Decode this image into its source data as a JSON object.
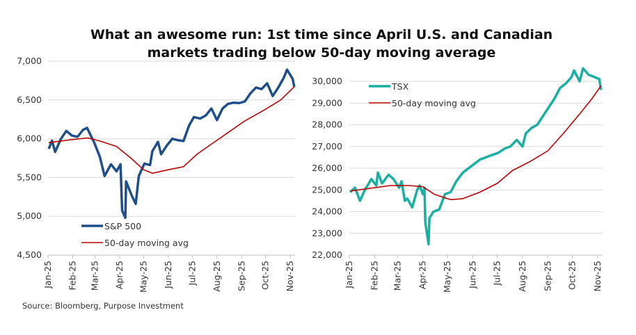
{
  "title_lines": [
    "What an awesome run: 1st time since April U.S. and Canadian",
    "markets trading below 50-day moving average"
  ],
  "source": "Source: Bloomberg, Purpose Investment",
  "chart_data": [
    {
      "type": "line",
      "year": 2025,
      "ylim": [
        4500,
        7000
      ],
      "yticks": [
        4500,
        5000,
        5500,
        6000,
        6500,
        7000
      ],
      "ytick_labels": [
        "4,500",
        "5,000",
        "5,500",
        "6,000",
        "6,500",
        "7,000"
      ],
      "xtick_labels": [
        "Jan-25",
        "Feb-25",
        "Mar-25",
        "Apr-25",
        "May-25",
        "Jun-25",
        "Jul-25",
        "Aug-25",
        "Sep-25",
        "Oct-25",
        "Nov-25"
      ],
      "grid": true,
      "legend": "bottom-left",
      "series": [
        {
          "name": "S&P 500",
          "color": "#1f4e8c",
          "width": 3.5,
          "x": [
            "2025-01-02",
            "2025-01-06",
            "2025-01-10",
            "2025-01-17",
            "2025-01-24",
            "2025-01-31",
            "2025-02-07",
            "2025-02-14",
            "2025-02-19",
            "2025-02-28",
            "2025-03-07",
            "2025-03-13",
            "2025-03-21",
            "2025-03-28",
            "2025-04-02",
            "2025-04-04",
            "2025-04-08",
            "2025-04-09",
            "2025-04-16",
            "2025-04-21",
            "2025-04-25",
            "2025-05-02",
            "2025-05-09",
            "2025-05-12",
            "2025-05-19",
            "2025-05-23",
            "2025-05-30",
            "2025-06-06",
            "2025-06-13",
            "2025-06-20",
            "2025-06-27",
            "2025-07-03",
            "2025-07-11",
            "2025-07-18",
            "2025-07-25",
            "2025-08-01",
            "2025-08-08",
            "2025-08-15",
            "2025-08-22",
            "2025-08-29",
            "2025-09-05",
            "2025-09-12",
            "2025-09-19",
            "2025-09-26",
            "2025-10-03",
            "2025-10-10",
            "2025-10-17",
            "2025-10-24",
            "2025-10-28",
            "2025-10-31",
            "2025-11-04",
            "2025-11-06"
          ],
          "y": [
            5870,
            5975,
            5830,
            5995,
            6100,
            6040,
            6025,
            6115,
            6140,
            5950,
            5770,
            5520,
            5670,
            5580,
            5670,
            5075,
            4980,
            5450,
            5270,
            5160,
            5520,
            5680,
            5660,
            5840,
            5960,
            5800,
            5910,
            6000,
            5980,
            5970,
            6170,
            6280,
            6260,
            6300,
            6390,
            6240,
            6390,
            6450,
            6465,
            6460,
            6480,
            6585,
            6660,
            6640,
            6715,
            6550,
            6660,
            6790,
            6890,
            6840,
            6770,
            6670
          ]
        },
        {
          "name": "50-day moving avg",
          "color": "#c00000",
          "width": 1.6,
          "x": [
            "2025-01-02",
            "2025-02-01",
            "2025-02-20",
            "2025-03-07",
            "2025-03-28",
            "2025-04-15",
            "2025-05-01",
            "2025-05-12",
            "2025-06-01",
            "2025-06-20",
            "2025-07-07",
            "2025-07-25",
            "2025-08-15",
            "2025-09-05",
            "2025-10-01",
            "2025-10-20",
            "2025-11-06"
          ],
          "y": [
            5950,
            5990,
            6010,
            5970,
            5900,
            5750,
            5600,
            5555,
            5600,
            5640,
            5800,
            5930,
            6080,
            6230,
            6380,
            6500,
            6670
          ]
        }
      ]
    },
    {
      "type": "line",
      "year": 2025,
      "ylim": [
        22000,
        30500
      ],
      "yticks": [
        22000,
        23000,
        24000,
        25000,
        26000,
        27000,
        28000,
        29000,
        30000
      ],
      "ytick_labels": [
        "22,000",
        "23,000",
        "24,000",
        "25,000",
        "26,000",
        "27,000",
        "28,000",
        "29,000",
        "30,000"
      ],
      "xtick_labels": [
        "Jan-25",
        "Feb-25",
        "Mar-25",
        "Apr-25",
        "May-25",
        "Jun-25",
        "Jul-25",
        "Aug-25",
        "Sep-25",
        "Oct-25",
        "Nov-25"
      ],
      "grid": true,
      "legend": "top-left",
      "series": [
        {
          "name": "TSX",
          "color": "#1aafa3",
          "width": 3.5,
          "x": [
            "2025-01-02",
            "2025-01-08",
            "2025-01-14",
            "2025-01-20",
            "2025-01-28",
            "2025-02-03",
            "2025-02-05",
            "2025-02-10",
            "2025-02-18",
            "2025-02-24",
            "2025-03-03",
            "2025-03-06",
            "2025-03-10",
            "2025-03-13",
            "2025-03-19",
            "2025-03-25",
            "2025-03-28",
            "2025-04-01",
            "2025-04-03",
            "2025-04-04",
            "2025-04-08",
            "2025-04-09",
            "2025-04-14",
            "2025-04-21",
            "2025-04-28",
            "2025-05-05",
            "2025-05-12",
            "2025-05-20",
            "2025-05-27",
            "2025-06-03",
            "2025-06-10",
            "2025-06-17",
            "2025-06-24",
            "2025-07-02",
            "2025-07-10",
            "2025-07-17",
            "2025-07-25",
            "2025-08-01",
            "2025-08-05",
            "2025-08-12",
            "2025-08-19",
            "2025-08-26",
            "2025-09-02",
            "2025-09-09",
            "2025-09-16",
            "2025-09-23",
            "2025-09-30",
            "2025-10-03",
            "2025-10-10",
            "2025-10-14",
            "2025-10-21",
            "2025-10-28",
            "2025-11-03",
            "2025-11-05"
          ],
          "y": [
            24900,
            25100,
            24500,
            25000,
            25500,
            25200,
            25800,
            25300,
            25700,
            25500,
            25100,
            25400,
            24500,
            24600,
            24200,
            25000,
            25200,
            24800,
            25100,
            23500,
            22500,
            23700,
            24000,
            24100,
            24800,
            24900,
            25400,
            25800,
            26000,
            26200,
            26400,
            26500,
            26600,
            26700,
            26900,
            27000,
            27300,
            27000,
            27600,
            27850,
            28000,
            28400,
            28800,
            29200,
            29700,
            29900,
            30200,
            30500,
            30000,
            30600,
            30300,
            30200,
            30100,
            29600
          ]
        },
        {
          "name": "50-day moving avg",
          "color": "#c00000",
          "width": 1.6,
          "x": [
            "2025-01-02",
            "2025-02-01",
            "2025-02-20",
            "2025-03-15",
            "2025-04-01",
            "2025-04-15",
            "2025-05-05",
            "2025-05-20",
            "2025-06-10",
            "2025-07-01",
            "2025-07-20",
            "2025-08-10",
            "2025-09-01",
            "2025-09-20",
            "2025-10-10",
            "2025-10-25",
            "2025-11-05"
          ],
          "y": [
            24950,
            25100,
            25200,
            25200,
            25150,
            24800,
            24550,
            24600,
            24900,
            25300,
            25900,
            26300,
            26800,
            27600,
            28500,
            29200,
            29800
          ]
        }
      ]
    }
  ]
}
